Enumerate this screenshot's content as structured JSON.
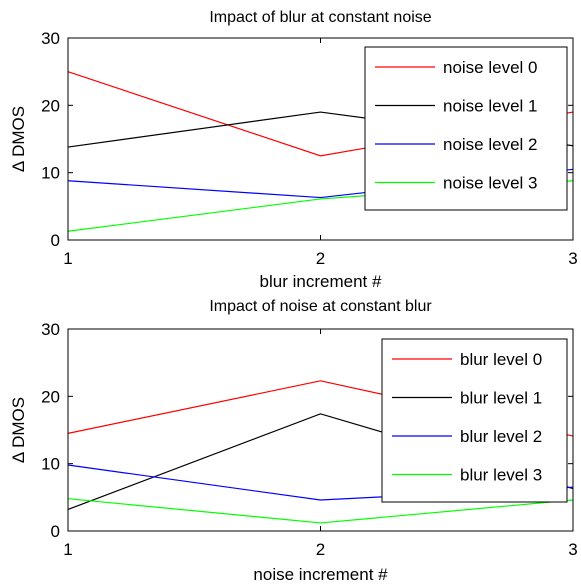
{
  "chart_data": [
    {
      "type": "line",
      "title": "Impact of blur at constant noise",
      "xlabel": "blur increment #",
      "ylabel": "Δ DMOS",
      "x": [
        1,
        2,
        3
      ],
      "xticks": [
        "1",
        "2",
        "3"
      ],
      "yticks": [
        "0",
        "10",
        "20",
        "30"
      ],
      "xlim": [
        1,
        3
      ],
      "ylim": [
        0,
        30
      ],
      "legend_position": "top-right",
      "series": [
        {
          "name": "noise level 0",
          "color": "#ff0000",
          "values": [
            25,
            12.5,
            19
          ]
        },
        {
          "name": "noise level 1",
          "color": "#000000",
          "values": [
            13.8,
            19,
            14
          ]
        },
        {
          "name": "noise level 2",
          "color": "#0000ff",
          "values": [
            8.8,
            6.3,
            10.5
          ]
        },
        {
          "name": "noise level 3",
          "color": "#00ff00",
          "values": [
            1.3,
            6.1,
            8.8
          ]
        }
      ]
    },
    {
      "type": "line",
      "title": "Impact of noise at constant blur",
      "xlabel": "noise increment #",
      "ylabel": "Δ DMOS",
      "x": [
        1,
        2,
        3
      ],
      "xticks": [
        "1",
        "2",
        "3"
      ],
      "yticks": [
        "0",
        "10",
        "20",
        "30"
      ],
      "xlim": [
        1,
        3
      ],
      "ylim": [
        0,
        30
      ],
      "legend_position": "top-right",
      "series": [
        {
          "name": "blur level 0",
          "color": "#ff0000",
          "values": [
            14.5,
            22.3,
            14.1
          ]
        },
        {
          "name": "blur level 1",
          "color": "#000000",
          "values": [
            3.2,
            17.4,
            6.3
          ]
        },
        {
          "name": "blur level 2",
          "color": "#0000ff",
          "values": [
            9.8,
            4.6,
            6.5
          ]
        },
        {
          "name": "blur level 3",
          "color": "#00ff00",
          "values": [
            4.8,
            1.2,
            4.6
          ]
        }
      ]
    }
  ]
}
